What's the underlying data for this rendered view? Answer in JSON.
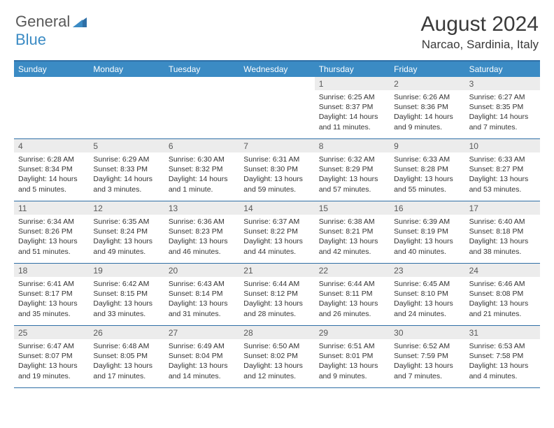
{
  "brand": {
    "part1": "General",
    "part2": "Blue"
  },
  "title": "August 2024",
  "location": "Narcao, Sardinia, Italy",
  "colors": {
    "header_bg": "#3b8bc4",
    "header_text": "#ffffff",
    "border": "#2f6fa6",
    "daynum_bg": "#ececec",
    "daynum_text": "#595959",
    "body_text": "#333333",
    "title_text": "#3a3a3a"
  },
  "day_labels": [
    "Sunday",
    "Monday",
    "Tuesday",
    "Wednesday",
    "Thursday",
    "Friday",
    "Saturday"
  ],
  "grid": {
    "columns": 7,
    "rows": 5,
    "first_day_column": 4
  },
  "days": [
    {
      "n": 1,
      "sunrise": "6:25 AM",
      "sunset": "8:37 PM",
      "daylight": "14 hours and 11 minutes."
    },
    {
      "n": 2,
      "sunrise": "6:26 AM",
      "sunset": "8:36 PM",
      "daylight": "14 hours and 9 minutes."
    },
    {
      "n": 3,
      "sunrise": "6:27 AM",
      "sunset": "8:35 PM",
      "daylight": "14 hours and 7 minutes."
    },
    {
      "n": 4,
      "sunrise": "6:28 AM",
      "sunset": "8:34 PM",
      "daylight": "14 hours and 5 minutes."
    },
    {
      "n": 5,
      "sunrise": "6:29 AM",
      "sunset": "8:33 PM",
      "daylight": "14 hours and 3 minutes."
    },
    {
      "n": 6,
      "sunrise": "6:30 AM",
      "sunset": "8:32 PM",
      "daylight": "14 hours and 1 minute."
    },
    {
      "n": 7,
      "sunrise": "6:31 AM",
      "sunset": "8:30 PM",
      "daylight": "13 hours and 59 minutes."
    },
    {
      "n": 8,
      "sunrise": "6:32 AM",
      "sunset": "8:29 PM",
      "daylight": "13 hours and 57 minutes."
    },
    {
      "n": 9,
      "sunrise": "6:33 AM",
      "sunset": "8:28 PM",
      "daylight": "13 hours and 55 minutes."
    },
    {
      "n": 10,
      "sunrise": "6:33 AM",
      "sunset": "8:27 PM",
      "daylight": "13 hours and 53 minutes."
    },
    {
      "n": 11,
      "sunrise": "6:34 AM",
      "sunset": "8:26 PM",
      "daylight": "13 hours and 51 minutes."
    },
    {
      "n": 12,
      "sunrise": "6:35 AM",
      "sunset": "8:24 PM",
      "daylight": "13 hours and 49 minutes."
    },
    {
      "n": 13,
      "sunrise": "6:36 AM",
      "sunset": "8:23 PM",
      "daylight": "13 hours and 46 minutes."
    },
    {
      "n": 14,
      "sunrise": "6:37 AM",
      "sunset": "8:22 PM",
      "daylight": "13 hours and 44 minutes."
    },
    {
      "n": 15,
      "sunrise": "6:38 AM",
      "sunset": "8:21 PM",
      "daylight": "13 hours and 42 minutes."
    },
    {
      "n": 16,
      "sunrise": "6:39 AM",
      "sunset": "8:19 PM",
      "daylight": "13 hours and 40 minutes."
    },
    {
      "n": 17,
      "sunrise": "6:40 AM",
      "sunset": "8:18 PM",
      "daylight": "13 hours and 38 minutes."
    },
    {
      "n": 18,
      "sunrise": "6:41 AM",
      "sunset": "8:17 PM",
      "daylight": "13 hours and 35 minutes."
    },
    {
      "n": 19,
      "sunrise": "6:42 AM",
      "sunset": "8:15 PM",
      "daylight": "13 hours and 33 minutes."
    },
    {
      "n": 20,
      "sunrise": "6:43 AM",
      "sunset": "8:14 PM",
      "daylight": "13 hours and 31 minutes."
    },
    {
      "n": 21,
      "sunrise": "6:44 AM",
      "sunset": "8:12 PM",
      "daylight": "13 hours and 28 minutes."
    },
    {
      "n": 22,
      "sunrise": "6:44 AM",
      "sunset": "8:11 PM",
      "daylight": "13 hours and 26 minutes."
    },
    {
      "n": 23,
      "sunrise": "6:45 AM",
      "sunset": "8:10 PM",
      "daylight": "13 hours and 24 minutes."
    },
    {
      "n": 24,
      "sunrise": "6:46 AM",
      "sunset": "8:08 PM",
      "daylight": "13 hours and 21 minutes."
    },
    {
      "n": 25,
      "sunrise": "6:47 AM",
      "sunset": "8:07 PM",
      "daylight": "13 hours and 19 minutes."
    },
    {
      "n": 26,
      "sunrise": "6:48 AM",
      "sunset": "8:05 PM",
      "daylight": "13 hours and 17 minutes."
    },
    {
      "n": 27,
      "sunrise": "6:49 AM",
      "sunset": "8:04 PM",
      "daylight": "13 hours and 14 minutes."
    },
    {
      "n": 28,
      "sunrise": "6:50 AM",
      "sunset": "8:02 PM",
      "daylight": "13 hours and 12 minutes."
    },
    {
      "n": 29,
      "sunrise": "6:51 AM",
      "sunset": "8:01 PM",
      "daylight": "13 hours and 9 minutes."
    },
    {
      "n": 30,
      "sunrise": "6:52 AM",
      "sunset": "7:59 PM",
      "daylight": "13 hours and 7 minutes."
    },
    {
      "n": 31,
      "sunrise": "6:53 AM",
      "sunset": "7:58 PM",
      "daylight": "13 hours and 4 minutes."
    }
  ]
}
